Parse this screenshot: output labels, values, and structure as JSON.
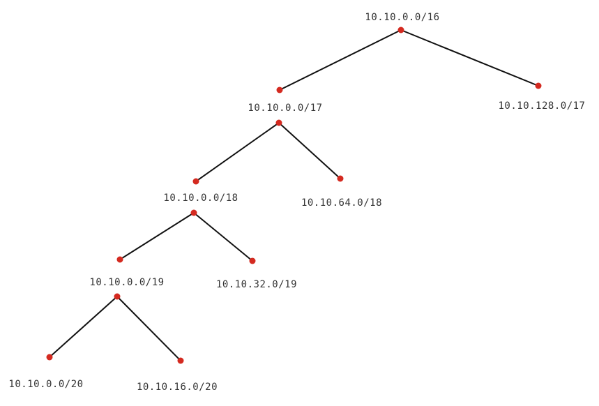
{
  "colors": {
    "node": "#d42a20",
    "edge": "#111111",
    "label": "#333333",
    "background": "#ffffff"
  },
  "tree": {
    "nodes": [
      {
        "id": "n16",
        "label": "10.10.0.0/16"
      },
      {
        "id": "n17a",
        "label": "10.10.0.0/17"
      },
      {
        "id": "n17b",
        "label": "10.10.128.0/17"
      },
      {
        "id": "n18a",
        "label": "10.10.0.0/18"
      },
      {
        "id": "n18b",
        "label": "10.10.64.0/18"
      },
      {
        "id": "n19a",
        "label": "10.10.0.0/19"
      },
      {
        "id": "n19b",
        "label": "10.10.32.0/19"
      },
      {
        "id": "n20a",
        "label": "10.10.0.0/20"
      },
      {
        "id": "n20b",
        "label": "10.10.16.0/20"
      }
    ],
    "edges": [
      {
        "from": "n16",
        "to": "n17a"
      },
      {
        "from": "n16",
        "to": "n17b"
      },
      {
        "from": "n17a",
        "to": "n18a"
      },
      {
        "from": "n17a",
        "to": "n18b"
      },
      {
        "from": "n18a",
        "to": "n19a"
      },
      {
        "from": "n18a",
        "to": "n19b"
      },
      {
        "from": "n19a",
        "to": "n20a"
      },
      {
        "from": "n19a",
        "to": "n20b"
      }
    ]
  }
}
